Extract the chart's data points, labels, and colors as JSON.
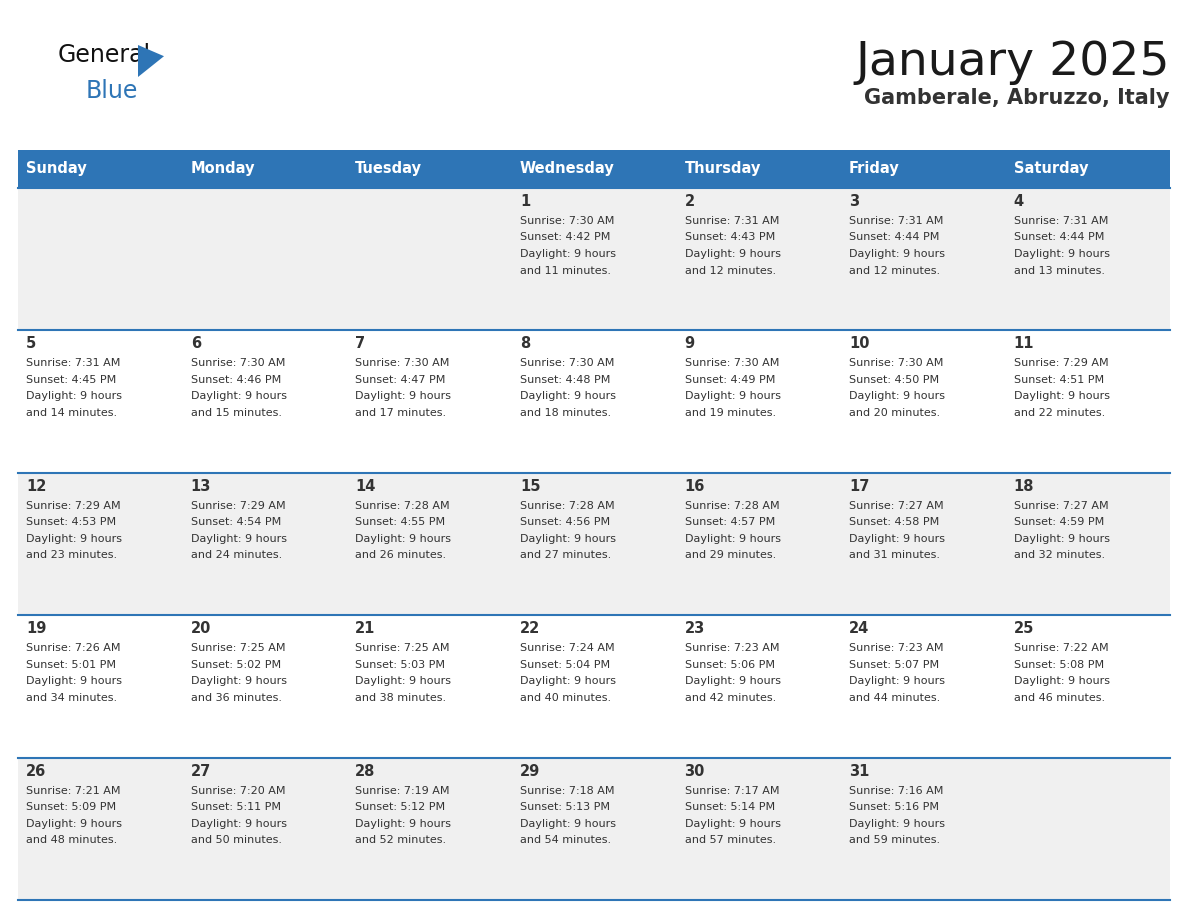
{
  "title": "January 2025",
  "subtitle": "Gamberale, Abruzzo, Italy",
  "header_color": "#2E75B6",
  "header_text_color": "#FFFFFF",
  "days_of_week": [
    "Sunday",
    "Monday",
    "Tuesday",
    "Wednesday",
    "Thursday",
    "Friday",
    "Saturday"
  ],
  "row_colors": [
    "#F0F0F0",
    "#FFFFFF"
  ],
  "grid_line_color": "#2E75B6",
  "separator_color": "#2E75B6",
  "text_color": "#333333",
  "calendar_data": [
    [
      {
        "day": "",
        "sunrise": "",
        "sunset": "",
        "daylight": ""
      },
      {
        "day": "",
        "sunrise": "",
        "sunset": "",
        "daylight": ""
      },
      {
        "day": "",
        "sunrise": "",
        "sunset": "",
        "daylight": ""
      },
      {
        "day": "1",
        "sunrise": "7:30 AM",
        "sunset": "4:42 PM",
        "daylight": "9 hours and 11 minutes."
      },
      {
        "day": "2",
        "sunrise": "7:31 AM",
        "sunset": "4:43 PM",
        "daylight": "9 hours and 12 minutes."
      },
      {
        "day": "3",
        "sunrise": "7:31 AM",
        "sunset": "4:44 PM",
        "daylight": "9 hours and 12 minutes."
      },
      {
        "day": "4",
        "sunrise": "7:31 AM",
        "sunset": "4:44 PM",
        "daylight": "9 hours and 13 minutes."
      }
    ],
    [
      {
        "day": "5",
        "sunrise": "7:31 AM",
        "sunset": "4:45 PM",
        "daylight": "9 hours and 14 minutes."
      },
      {
        "day": "6",
        "sunrise": "7:30 AM",
        "sunset": "4:46 PM",
        "daylight": "9 hours and 15 minutes."
      },
      {
        "day": "7",
        "sunrise": "7:30 AM",
        "sunset": "4:47 PM",
        "daylight": "9 hours and 17 minutes."
      },
      {
        "day": "8",
        "sunrise": "7:30 AM",
        "sunset": "4:48 PM",
        "daylight": "9 hours and 18 minutes."
      },
      {
        "day": "9",
        "sunrise": "7:30 AM",
        "sunset": "4:49 PM",
        "daylight": "9 hours and 19 minutes."
      },
      {
        "day": "10",
        "sunrise": "7:30 AM",
        "sunset": "4:50 PM",
        "daylight": "9 hours and 20 minutes."
      },
      {
        "day": "11",
        "sunrise": "7:29 AM",
        "sunset": "4:51 PM",
        "daylight": "9 hours and 22 minutes."
      }
    ],
    [
      {
        "day": "12",
        "sunrise": "7:29 AM",
        "sunset": "4:53 PM",
        "daylight": "9 hours and 23 minutes."
      },
      {
        "day": "13",
        "sunrise": "7:29 AM",
        "sunset": "4:54 PM",
        "daylight": "9 hours and 24 minutes."
      },
      {
        "day": "14",
        "sunrise": "7:28 AM",
        "sunset": "4:55 PM",
        "daylight": "9 hours and 26 minutes."
      },
      {
        "day": "15",
        "sunrise": "7:28 AM",
        "sunset": "4:56 PM",
        "daylight": "9 hours and 27 minutes."
      },
      {
        "day": "16",
        "sunrise": "7:28 AM",
        "sunset": "4:57 PM",
        "daylight": "9 hours and 29 minutes."
      },
      {
        "day": "17",
        "sunrise": "7:27 AM",
        "sunset": "4:58 PM",
        "daylight": "9 hours and 31 minutes."
      },
      {
        "day": "18",
        "sunrise": "7:27 AM",
        "sunset": "4:59 PM",
        "daylight": "9 hours and 32 minutes."
      }
    ],
    [
      {
        "day": "19",
        "sunrise": "7:26 AM",
        "sunset": "5:01 PM",
        "daylight": "9 hours and 34 minutes."
      },
      {
        "day": "20",
        "sunrise": "7:25 AM",
        "sunset": "5:02 PM",
        "daylight": "9 hours and 36 minutes."
      },
      {
        "day": "21",
        "sunrise": "7:25 AM",
        "sunset": "5:03 PM",
        "daylight": "9 hours and 38 minutes."
      },
      {
        "day": "22",
        "sunrise": "7:24 AM",
        "sunset": "5:04 PM",
        "daylight": "9 hours and 40 minutes."
      },
      {
        "day": "23",
        "sunrise": "7:23 AM",
        "sunset": "5:06 PM",
        "daylight": "9 hours and 42 minutes."
      },
      {
        "day": "24",
        "sunrise": "7:23 AM",
        "sunset": "5:07 PM",
        "daylight": "9 hours and 44 minutes."
      },
      {
        "day": "25",
        "sunrise": "7:22 AM",
        "sunset": "5:08 PM",
        "daylight": "9 hours and 46 minutes."
      }
    ],
    [
      {
        "day": "26",
        "sunrise": "7:21 AM",
        "sunset": "5:09 PM",
        "daylight": "9 hours and 48 minutes."
      },
      {
        "day": "27",
        "sunrise": "7:20 AM",
        "sunset": "5:11 PM",
        "daylight": "9 hours and 50 minutes."
      },
      {
        "day": "28",
        "sunrise": "7:19 AM",
        "sunset": "5:12 PM",
        "daylight": "9 hours and 52 minutes."
      },
      {
        "day": "29",
        "sunrise": "7:18 AM",
        "sunset": "5:13 PM",
        "daylight": "9 hours and 54 minutes."
      },
      {
        "day": "30",
        "sunrise": "7:17 AM",
        "sunset": "5:14 PM",
        "daylight": "9 hours and 57 minutes."
      },
      {
        "day": "31",
        "sunrise": "7:16 AM",
        "sunset": "5:16 PM",
        "daylight": "9 hours and 59 minutes."
      },
      {
        "day": "",
        "sunrise": "",
        "sunset": "",
        "daylight": ""
      }
    ]
  ],
  "logo_general_color": "#111111",
  "logo_blue_color": "#2E75B6",
  "logo_triangle_color": "#2E75B6",
  "title_color": "#1a1a1a",
  "subtitle_color": "#333333"
}
